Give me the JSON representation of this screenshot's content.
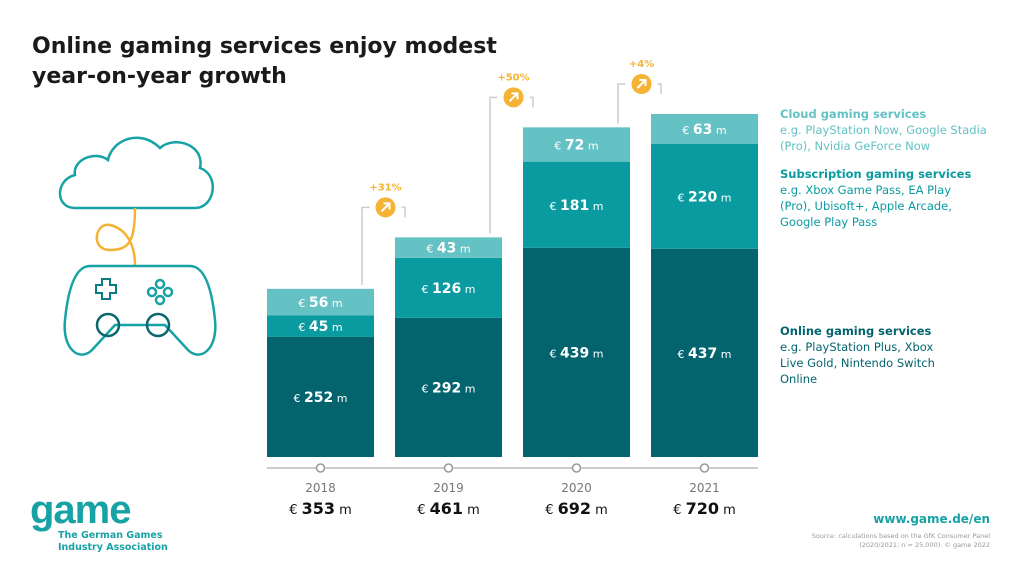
{
  "title": "Online gaming services enjoy modest year-on-year growth",
  "colors": {
    "cloud": "#64c1c4",
    "subscription": "#0a9ba0",
    "online": "#03646e",
    "growth": "#f5b335",
    "logo": "#17a2a5"
  },
  "chart_data": {
    "type": "bar",
    "stacked": true,
    "unit_prefix": "€",
    "unit_suffix": "m",
    "categories": [
      "2018",
      "2019",
      "2020",
      "2021"
    ],
    "series": [
      {
        "name": "Online gaming services",
        "values": [
          252,
          292,
          439,
          437
        ]
      },
      {
        "name": "Subscription gaming services",
        "values": [
          45,
          126,
          181,
          220
        ]
      },
      {
        "name": "Cloud gaming services",
        "values": [
          56,
          43,
          72,
          63
        ]
      }
    ],
    "totals": [
      "353",
      "461",
      "692",
      "720"
    ],
    "growth": [
      "+31%",
      "+50%",
      "+4%"
    ]
  },
  "legend": [
    {
      "title": "Cloud gaming services",
      "desc": "e.g. PlayStation Now, Google Stadia (Pro), Nvidia GeForce Now"
    },
    {
      "title": "Subscription gaming services",
      "desc": "e.g. Xbox Game Pass, EA Play (Pro), Ubisoft+, Apple Arcade, Google Play Pass"
    },
    {
      "title": "Online gaming services",
      "desc": "e.g. PlayStation Plus, Xbox Live Gold, Nintendo Switch Online"
    }
  ],
  "logo": {
    "word": "game",
    "sub1": "The German Games",
    "sub2": "Industry Association"
  },
  "url": "www.game.de/en",
  "source": "Source: calculations based on the GfK Consumer Panel (2020/2021; n = 25,000). © game 2022"
}
